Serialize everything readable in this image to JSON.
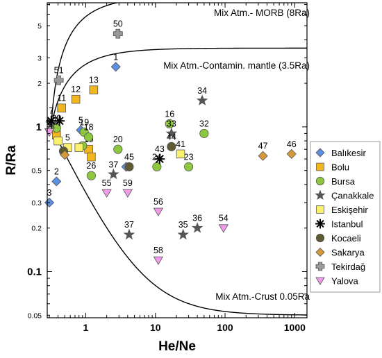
{
  "chart_data": {
    "type": "scatter",
    "title": "",
    "xlabel": "He/Ne",
    "ylabel": "R/Ra",
    "xscale": "log",
    "yscale": "log",
    "xlim": [
      0.28,
      1500
    ],
    "ylim": [
      0.048,
      7.2
    ],
    "x_ticks": [
      {
        "value": 1,
        "label": "1"
      },
      {
        "value": 10,
        "label": "10"
      },
      {
        "value": 100,
        "label": "100"
      },
      {
        "value": 1000,
        "label": "1000"
      }
    ],
    "y_ticks": [
      {
        "value": 0.05,
        "label": "0.05",
        "bold": false
      },
      {
        "value": 0.1,
        "label": "0.1",
        "bold": true
      },
      {
        "value": 0.2,
        "label": "0.2",
        "bold": false
      },
      {
        "value": 0.3,
        "label": "0.3",
        "bold": false
      },
      {
        "value": 0.5,
        "label": "0.5",
        "bold": false
      },
      {
        "value": 1,
        "label": "1",
        "bold": true
      },
      {
        "value": 2,
        "label": "2",
        "bold": false
      },
      {
        "value": 3,
        "label": "3",
        "bold": false
      },
      {
        "value": 5,
        "label": "5",
        "bold": false
      }
    ],
    "grid": false,
    "legend_position": "right",
    "curves": [
      {
        "name": "Mix Atm.- MORB (8Ra)",
        "end_ra": 8
      },
      {
        "name": "Mix Atm.-Contamin. mantle (3.5Ra)",
        "end_ra": 3.5
      },
      {
        "name": "Mix Atm.-Crust 0.05Ra",
        "end_ra": 0.05
      }
    ],
    "series": [
      {
        "name": "Balıkesir",
        "marker": "diamond",
        "color": "#5B8FE0",
        "points": [
          {
            "x": 2.7,
            "y": 2.6,
            "label": "1"
          },
          {
            "x": 0.38,
            "y": 0.42,
            "label": "2"
          },
          {
            "x": 0.3,
            "y": 0.3,
            "label": "3"
          },
          {
            "x": 0.85,
            "y": 0.95,
            "label": "5"
          },
          {
            "x": 3.8,
            "y": 0.53,
            "label": ""
          }
        ]
      },
      {
        "name": "Bolu",
        "marker": "square",
        "color": "#F2B61E",
        "points": [
          {
            "x": 1.3,
            "y": 1.8,
            "label": "13"
          },
          {
            "x": 0.72,
            "y": 1.55,
            "label": "12"
          },
          {
            "x": 0.45,
            "y": 1.35,
            "label": "11"
          },
          {
            "x": 0.38,
            "y": 0.88,
            "label": "2"
          },
          {
            "x": 1.1,
            "y": 0.7,
            "label": "10"
          },
          {
            "x": 1.2,
            "y": 0.62,
            "label": ""
          }
        ]
      },
      {
        "name": "Bursa",
        "marker": "circle",
        "color": "#8DC63F",
        "points": [
          {
            "x": 16,
            "y": 1.05,
            "label": "16"
          },
          {
            "x": 50,
            "y": 0.9,
            "label": "32"
          },
          {
            "x": 2.9,
            "y": 0.7,
            "label": "20"
          },
          {
            "x": 1.2,
            "y": 0.46,
            "label": "26"
          },
          {
            "x": 10.5,
            "y": 0.53,
            "label": "24"
          },
          {
            "x": 30,
            "y": 0.53,
            "label": "23"
          },
          {
            "x": 0.95,
            "y": 0.92,
            "label": "19"
          },
          {
            "x": 1.1,
            "y": 0.85,
            "label": "18"
          },
          {
            "x": 0.38,
            "y": 0.98,
            "label": "30"
          },
          {
            "x": 0.9,
            "y": 0.74,
            "label": ""
          }
        ]
      },
      {
        "name": "Çanakkale",
        "marker": "star",
        "color": "#555555",
        "points": [
          {
            "x": 47,
            "y": 1.52,
            "label": "34"
          },
          {
            "x": 17,
            "y": 0.9,
            "label": "33"
          },
          {
            "x": 2.5,
            "y": 0.47,
            "label": "37"
          },
          {
            "x": 4.2,
            "y": 0.18,
            "label": "37"
          },
          {
            "x": 25,
            "y": 0.18,
            "label": "35"
          },
          {
            "x": 40,
            "y": 0.2,
            "label": "36"
          },
          {
            "x": 0.32,
            "y": 1.05,
            "label": ""
          }
        ]
      },
      {
        "name": "Eskişehir",
        "marker": "square",
        "color": "#FAF06E",
        "points": [
          {
            "x": 0.55,
            "y": 0.72,
            "label": "5"
          },
          {
            "x": 0.8,
            "y": 0.72,
            "label": ""
          },
          {
            "x": 23,
            "y": 0.65,
            "label": "41"
          },
          {
            "x": 0.4,
            "y": 0.8,
            "label": ""
          }
        ]
      },
      {
        "name": "Istanbul",
        "marker": "asterisk",
        "color": "#000000",
        "points": [
          {
            "x": 0.32,
            "y": 1.1,
            "label": "7"
          },
          {
            "x": 0.42,
            "y": 1.1,
            "label": ""
          },
          {
            "x": 11.5,
            "y": 0.6,
            "label": "43"
          }
        ]
      },
      {
        "name": "Kocaeli",
        "marker": "circle",
        "color": "#5E5A34",
        "points": [
          {
            "x": 17,
            "y": 0.73,
            "label": "44"
          },
          {
            "x": 4.2,
            "y": 0.53,
            "label": "45"
          },
          {
            "x": 0.48,
            "y": 0.68,
            "label": ""
          }
        ]
      },
      {
        "name": "Sakarya",
        "marker": "diamond",
        "color": "#D49A3A",
        "points": [
          {
            "x": 350,
            "y": 0.63,
            "label": "47"
          },
          {
            "x": 900,
            "y": 0.65,
            "label": "46"
          },
          {
            "x": 0.5,
            "y": 0.64,
            "label": ""
          }
        ]
      },
      {
        "name": "Tekirdağ",
        "marker": "cross",
        "color": "#999999",
        "points": [
          {
            "x": 2.9,
            "y": 4.4,
            "label": "50"
          },
          {
            "x": 0.41,
            "y": 2.1,
            "label": "51"
          }
        ]
      },
      {
        "name": "Yalova",
        "marker": "triangle-down",
        "color": "#F29BEA",
        "points": [
          {
            "x": 2.0,
            "y": 0.35,
            "label": "55"
          },
          {
            "x": 4.0,
            "y": 0.35,
            "label": "59"
          },
          {
            "x": 11,
            "y": 0.26,
            "label": "56"
          },
          {
            "x": 95,
            "y": 0.2,
            "label": "54"
          },
          {
            "x": 11,
            "y": 0.12,
            "label": "58"
          },
          {
            "x": 0.3,
            "y": 0.92,
            "label": "5"
          }
        ]
      }
    ]
  }
}
